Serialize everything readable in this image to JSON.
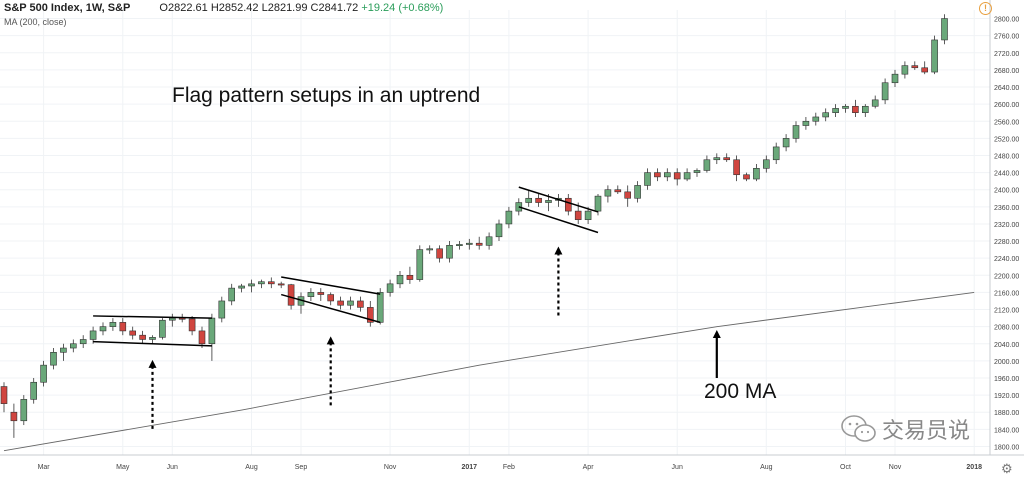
{
  "header": {
    "symbol": "S&P 500 Index, 1W, S&P",
    "open": "O2822.61",
    "high": "H2852.42",
    "low": "L2821.99",
    "close": "C2841.72",
    "change": "+19.24 (+0.68%)",
    "indicator_label": "MA (200, close)"
  },
  "icons": {
    "alert": "alert-icon",
    "settings": "gear-icon",
    "watermark": "wechat-logo"
  },
  "watermark_text": "交易员说",
  "colors": {
    "up": "#6aa87a",
    "down": "#d0453f",
    "ma": "#666666",
    "annotation": "#000000"
  },
  "chart_data": {
    "type": "candlestick",
    "title": "Flag pattern setups in an uptrend",
    "ma_annotation": "200 MA",
    "ylim": [
      1780,
      2820
    ],
    "y_ticks": [
      1800,
      1840,
      1880,
      1920,
      1960,
      2000,
      2040,
      2080,
      2120,
      2160,
      2200,
      2240,
      2280,
      2320,
      2360,
      2400,
      2440,
      2480,
      2520,
      2560,
      2600,
      2640,
      2680,
      2720,
      2760,
      2800
    ],
    "x_tick_labels": [
      {
        "label": "Mar",
        "index": 4
      },
      {
        "label": "May",
        "index": 12
      },
      {
        "label": "Jun",
        "index": 17
      },
      {
        "label": "Aug",
        "index": 25
      },
      {
        "label": "Sep",
        "index": 30
      },
      {
        "label": "Nov",
        "index": 39
      },
      {
        "label": "2017",
        "index": 47
      },
      {
        "label": "Feb",
        "index": 51
      },
      {
        "label": "Apr",
        "index": 59
      },
      {
        "label": "Jun",
        "index": 68
      },
      {
        "label": "Aug",
        "index": 77
      },
      {
        "label": "Oct",
        "index": 85
      },
      {
        "label": "Nov",
        "index": 90
      },
      {
        "label": "2018",
        "index": 98
      }
    ],
    "candles": [
      [
        1940,
        1950,
        1880,
        1900
      ],
      [
        1880,
        1900,
        1820,
        1860
      ],
      [
        1860,
        1920,
        1850,
        1910
      ],
      [
        1910,
        1960,
        1900,
        1950
      ],
      [
        1950,
        2000,
        1940,
        1990
      ],
      [
        1990,
        2030,
        1980,
        2020
      ],
      [
        2020,
        2040,
        2000,
        2030
      ],
      [
        2030,
        2050,
        2020,
        2040
      ],
      [
        2040,
        2060,
        2030,
        2050
      ],
      [
        2050,
        2080,
        2040,
        2070
      ],
      [
        2070,
        2090,
        2060,
        2080
      ],
      [
        2080,
        2100,
        2070,
        2090
      ],
      [
        2090,
        2100,
        2060,
        2070
      ],
      [
        2070,
        2080,
        2050,
        2060
      ],
      [
        2060,
        2070,
        2040,
        2050
      ],
      [
        2050,
        2060,
        2040,
        2055
      ],
      [
        2055,
        2100,
        2050,
        2095
      ],
      [
        2095,
        2110,
        2080,
        2100
      ],
      [
        2100,
        2110,
        2090,
        2098
      ],
      [
        2098,
        2105,
        2060,
        2070
      ],
      [
        2070,
        2080,
        2030,
        2040
      ],
      [
        2040,
        2110,
        2000,
        2100
      ],
      [
        2100,
        2150,
        2090,
        2140
      ],
      [
        2140,
        2180,
        2130,
        2170
      ],
      [
        2170,
        2180,
        2160,
        2175
      ],
      [
        2175,
        2190,
        2160,
        2180
      ],
      [
        2180,
        2190,
        2170,
        2185
      ],
      [
        2185,
        2195,
        2170,
        2180
      ],
      [
        2180,
        2185,
        2170,
        2178
      ],
      [
        2178,
        2180,
        2120,
        2130
      ],
      [
        2130,
        2160,
        2110,
        2150
      ],
      [
        2150,
        2170,
        2140,
        2160
      ],
      [
        2160,
        2170,
        2140,
        2155
      ],
      [
        2155,
        2160,
        2130,
        2140
      ],
      [
        2140,
        2150,
        2120,
        2130
      ],
      [
        2130,
        2150,
        2120,
        2140
      ],
      [
        2140,
        2150,
        2115,
        2125
      ],
      [
        2125,
        2140,
        2080,
        2090
      ],
      [
        2090,
        2170,
        2085,
        2160
      ],
      [
        2160,
        2190,
        2150,
        2180
      ],
      [
        2180,
        2210,
        2170,
        2200
      ],
      [
        2200,
        2220,
        2180,
        2190
      ],
      [
        2190,
        2270,
        2185,
        2260
      ],
      [
        2260,
        2270,
        2250,
        2262
      ],
      [
        2262,
        2270,
        2230,
        2240
      ],
      [
        2240,
        2280,
        2230,
        2270
      ],
      [
        2270,
        2280,
        2260,
        2272
      ],
      [
        2272,
        2285,
        2260,
        2275
      ],
      [
        2275,
        2290,
        2260,
        2270
      ],
      [
        2270,
        2300,
        2260,
        2290
      ],
      [
        2290,
        2330,
        2280,
        2320
      ],
      [
        2320,
        2360,
        2310,
        2350
      ],
      [
        2350,
        2380,
        2340,
        2370
      ],
      [
        2370,
        2400,
        2360,
        2380
      ],
      [
        2380,
        2390,
        2360,
        2370
      ],
      [
        2370,
        2390,
        2350,
        2375
      ],
      [
        2375,
        2390,
        2360,
        2380
      ],
      [
        2380,
        2390,
        2340,
        2350
      ],
      [
        2350,
        2370,
        2320,
        2330
      ],
      [
        2330,
        2360,
        2320,
        2350
      ],
      [
        2350,
        2390,
        2340,
        2385
      ],
      [
        2385,
        2410,
        2370,
        2400
      ],
      [
        2400,
        2410,
        2390,
        2395
      ],
      [
        2395,
        2410,
        2360,
        2380
      ],
      [
        2380,
        2420,
        2370,
        2410
      ],
      [
        2410,
        2450,
        2400,
        2440
      ],
      [
        2440,
        2450,
        2420,
        2430
      ],
      [
        2430,
        2450,
        2420,
        2440
      ],
      [
        2440,
        2450,
        2410,
        2425
      ],
      [
        2425,
        2450,
        2420,
        2440
      ],
      [
        2440,
        2450,
        2430,
        2445
      ],
      [
        2445,
        2480,
        2440,
        2470
      ],
      [
        2470,
        2485,
        2460,
        2475
      ],
      [
        2475,
        2485,
        2465,
        2470
      ],
      [
        2470,
        2480,
        2420,
        2435
      ],
      [
        2435,
        2440,
        2420,
        2425
      ],
      [
        2425,
        2460,
        2420,
        2450
      ],
      [
        2450,
        2480,
        2440,
        2470
      ],
      [
        2470,
        2510,
        2460,
        2500
      ],
      [
        2500,
        2530,
        2490,
        2520
      ],
      [
        2520,
        2560,
        2510,
        2550
      ],
      [
        2550,
        2570,
        2540,
        2560
      ],
      [
        2560,
        2580,
        2550,
        2570
      ],
      [
        2570,
        2590,
        2560,
        2580
      ],
      [
        2580,
        2600,
        2570,
        2590
      ],
      [
        2590,
        2600,
        2580,
        2595
      ],
      [
        2595,
        2610,
        2570,
        2580
      ],
      [
        2580,
        2600,
        2570,
        2595
      ],
      [
        2595,
        2620,
        2590,
        2610
      ],
      [
        2610,
        2660,
        2600,
        2650
      ],
      [
        2650,
        2680,
        2640,
        2670
      ],
      [
        2670,
        2700,
        2660,
        2690
      ],
      [
        2690,
        2700,
        2680,
        2685
      ],
      [
        2685,
        2700,
        2670,
        2675
      ],
      [
        2675,
        2760,
        2670,
        2750
      ],
      [
        2750,
        2810,
        2740,
        2800
      ]
    ],
    "ma_200": [
      {
        "index": 0,
        "value": 1790
      },
      {
        "index": 24,
        "value": 1885
      },
      {
        "index": 48,
        "value": 1990
      },
      {
        "index": 72,
        "value": 2080
      },
      {
        "index": 98,
        "value": 2160
      }
    ],
    "flags": [
      {
        "upper": [
          [
            9,
            2105
          ],
          [
            21,
            2100
          ]
        ],
        "lower": [
          [
            9,
            2045
          ],
          [
            21,
            2035
          ]
        ],
        "arrow_index": 15
      },
      {
        "upper": [
          [
            28,
            2196
          ],
          [
            38,
            2156
          ]
        ],
        "lower": [
          [
            28,
            2155
          ],
          [
            38,
            2090
          ]
        ],
        "arrow_index": 33
      },
      {
        "upper": [
          [
            52,
            2406
          ],
          [
            60,
            2348
          ]
        ],
        "lower": [
          [
            52,
            2360
          ],
          [
            60,
            2300
          ]
        ],
        "arrow_index": 56
      }
    ],
    "ma_arrow_index": 72
  }
}
